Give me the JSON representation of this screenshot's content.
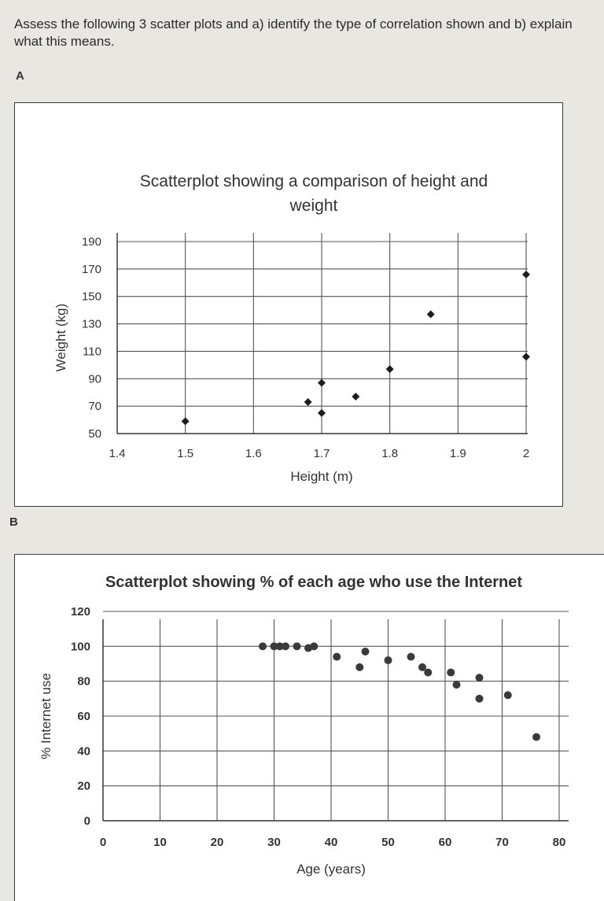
{
  "instructions": "Assess the following 3 scatter plots and a) identify the type of correlation shown and b) explain what this means.",
  "section_labels": {
    "a": "A",
    "b": "B"
  },
  "chart_data": [
    {
      "type": "scatter",
      "title": "Scatterplot showing a comparison of height and weight",
      "xlabel": "Height (m)",
      "ylabel": "Weight (kg)",
      "xlim": [
        1.4,
        2.0
      ],
      "ylim": [
        50,
        190
      ],
      "x_ticks": [
        "1.4",
        "1.5",
        "1.6",
        "1.7",
        "1.8",
        "1.9",
        "2"
      ],
      "y_ticks": [
        "190",
        "170",
        "150",
        "130",
        "110",
        "90",
        "70",
        "50"
      ],
      "grid": true,
      "marker": "diamond",
      "points": [
        {
          "x": 1.5,
          "y": 59
        },
        {
          "x": 1.68,
          "y": 73
        },
        {
          "x": 1.7,
          "y": 65
        },
        {
          "x": 1.7,
          "y": 87
        },
        {
          "x": 1.75,
          "y": 77
        },
        {
          "x": 1.8,
          "y": 97
        },
        {
          "x": 1.86,
          "y": 137
        },
        {
          "x": 2.0,
          "y": 166
        },
        {
          "x": 2.0,
          "y": 106
        }
      ]
    },
    {
      "type": "scatter",
      "title": "Scatterplot showing % of each age who use the Internet",
      "xlabel": "Age (years)",
      "ylabel": "% Internet use",
      "xlim": [
        0,
        80
      ],
      "ylim": [
        0,
        120
      ],
      "x_ticks": [
        "0",
        "10",
        "20",
        "30",
        "40",
        "50",
        "60",
        "70",
        "80"
      ],
      "y_ticks": [
        "120",
        "100",
        "80",
        "60",
        "40",
        "20",
        "0"
      ],
      "grid": true,
      "marker": "circle",
      "points": [
        {
          "x": 28,
          "y": 100
        },
        {
          "x": 30,
          "y": 100
        },
        {
          "x": 31,
          "y": 100
        },
        {
          "x": 32,
          "y": 100
        },
        {
          "x": 34,
          "y": 100
        },
        {
          "x": 36,
          "y": 99
        },
        {
          "x": 37,
          "y": 100
        },
        {
          "x": 41,
          "y": 94
        },
        {
          "x": 45,
          "y": 88
        },
        {
          "x": 46,
          "y": 97
        },
        {
          "x": 50,
          "y": 92
        },
        {
          "x": 54,
          "y": 94
        },
        {
          "x": 56,
          "y": 88
        },
        {
          "x": 57,
          "y": 85
        },
        {
          "x": 61,
          "y": 85
        },
        {
          "x": 62,
          "y": 78
        },
        {
          "x": 66,
          "y": 82
        },
        {
          "x": 66,
          "y": 70
        },
        {
          "x": 71,
          "y": 72
        },
        {
          "x": 76,
          "y": 48
        }
      ]
    }
  ]
}
